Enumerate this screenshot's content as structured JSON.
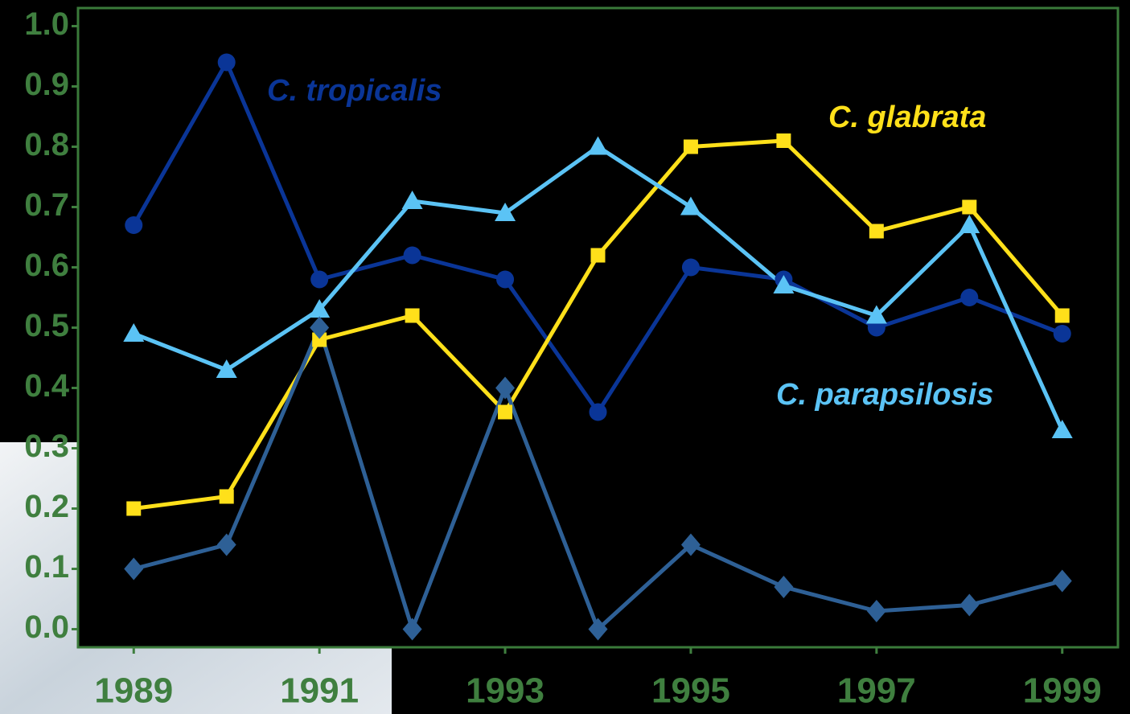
{
  "chart_data": {
    "type": "line",
    "x": [
      1989,
      1990,
      1991,
      1992,
      1993,
      1994,
      1995,
      1996,
      1997,
      1998,
      1999
    ],
    "xlim": [
      1988.4,
      1999.6
    ],
    "xticks": [
      1989,
      1991,
      1993,
      1995,
      1997,
      1999
    ],
    "ylim": [
      -0.03,
      1.03
    ],
    "yticks": [
      {
        "value": 0,
        "label": "0.0"
      },
      0.1,
      0.2,
      0.3,
      0.4,
      0.5,
      0.6,
      0.7,
      0.8,
      0.9,
      {
        "value": 1,
        "label": "1.0"
      }
    ],
    "series": [
      {
        "name": "C. tropicalis",
        "color": "#0a3597",
        "marker": "circle",
        "values": [
          0.67,
          0.94,
          0.58,
          0.62,
          0.58,
          0.36,
          0.6,
          0.58,
          0.5,
          0.55,
          0.49
        ]
      },
      {
        "name": "C. glabrata",
        "color": "#ffe01a",
        "marker": "square",
        "values": [
          0.2,
          0.22,
          0.48,
          0.52,
          0.36,
          0.62,
          0.8,
          0.81,
          0.66,
          0.7,
          0.52
        ]
      },
      {
        "name": "C. parapsilosis",
        "color": "#5bc3f5",
        "marker": "triangle",
        "values": [
          0.49,
          0.43,
          0.53,
          0.71,
          0.69,
          0.8,
          0.7,
          0.57,
          0.52,
          0.67,
          0.33
        ]
      },
      {
        "color": "#2e6096",
        "marker": "diamond",
        "values": [
          0.1,
          0.14,
          0.5,
          0.0,
          0.4,
          0.0,
          0.14,
          0.07,
          0.03,
          0.04,
          0.08
        ]
      }
    ]
  }
}
